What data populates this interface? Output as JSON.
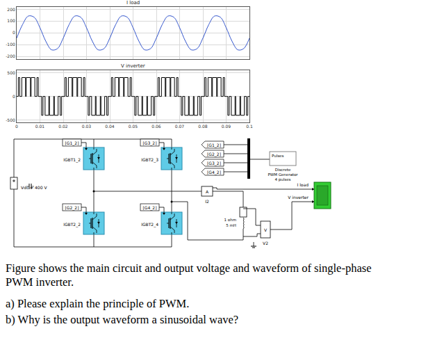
{
  "chart_data": [
    {
      "type": "line",
      "title": "I load",
      "color": "#3355cc",
      "x": [
        0,
        0.0025,
        0.005,
        0.0075,
        0.01,
        0.0125,
        0.015,
        0.0175,
        0.02,
        0.0225,
        0.025,
        0.0275,
        0.03,
        0.0325,
        0.035,
        0.0375,
        0.04,
        0.0425,
        0.045,
        0.0475,
        0.05,
        0.0525,
        0.055,
        0.0575,
        0.06,
        0.0625,
        0.065,
        0.0675,
        0.07,
        0.0725,
        0.075,
        0.0775,
        0.08,
        0.0825,
        0.085,
        0.0875,
        0.09,
        0.0925,
        0.095,
        0.0975,
        0.1
      ],
      "values": [
        -44,
        70,
        143,
        133,
        44,
        -70,
        -143,
        -133,
        -44,
        70,
        143,
        133,
        44,
        -70,
        -143,
        -133,
        -44,
        70,
        143,
        133,
        44,
        -70,
        -143,
        -133,
        -44,
        70,
        143,
        133,
        44,
        -70,
        -143,
        -133,
        -44,
        70,
        143,
        133,
        44,
        -70,
        -143,
        -133,
        -44
      ],
      "xlim": [
        0,
        0.1
      ],
      "ylim": [
        -220,
        220
      ],
      "xticks": [
        0,
        0.01,
        0.02,
        0.03,
        0.04,
        0.05,
        0.06,
        0.07,
        0.08,
        0.09,
        0.1
      ],
      "yticks": [
        -200,
        -100,
        0,
        100,
        200
      ],
      "grid": true,
      "tick_labels": "y"
    },
    {
      "type": "line",
      "title": "V inverter",
      "color": "#000000",
      "line_style": "step",
      "x": [
        0,
        0.0007,
        0.0013,
        0.0022,
        0.0038,
        0.0041,
        0.0059,
        0.0062,
        0.0078,
        0.0087,
        0.0093,
        0.01,
        0.0107,
        0.0113,
        0.0122,
        0.0138,
        0.0141,
        0.0159,
        0.0162,
        0.0178,
        0.0187,
        0.0193,
        0.02,
        0.0207,
        0.0213,
        0.0222,
        0.0238,
        0.0241,
        0.0259,
        0.0262,
        0.0278,
        0.0287,
        0.0293,
        0.03,
        0.0307,
        0.0313,
        0.0322,
        0.0338,
        0.0341,
        0.0359,
        0.0362,
        0.0378,
        0.0387,
        0.0393,
        0.04,
        0.0407,
        0.0413,
        0.0422,
        0.0438,
        0.0441,
        0.0459,
        0.0462,
        0.0478,
        0.0487,
        0.0493,
        0.05,
        0.0507,
        0.0513,
        0.0522,
        0.0538,
        0.0541,
        0.0559,
        0.0562,
        0.0578,
        0.0587,
        0.0593,
        0.06,
        0.0607,
        0.0613,
        0.0622,
        0.0638,
        0.0641,
        0.0659,
        0.0662,
        0.0678,
        0.0687,
        0.0693,
        0.07,
        0.0707,
        0.0713,
        0.0722,
        0.0738,
        0.0741,
        0.0759,
        0.0762,
        0.0778,
        0.0787,
        0.0793,
        0.08,
        0.0807,
        0.0813,
        0.0822,
        0.0838,
        0.0841,
        0.0859,
        0.0862,
        0.0878,
        0.0887,
        0.0893,
        0.09,
        0.0907,
        0.0913,
        0.0922,
        0.0938,
        0.0941,
        0.0959,
        0.0962,
        0.0978,
        0.0987,
        0.0993,
        0.1
      ],
      "values": [
        0,
        400,
        0,
        400,
        0,
        400,
        0,
        400,
        0,
        400,
        0,
        0,
        -400,
        0,
        -400,
        0,
        -400,
        0,
        -400,
        0,
        -400,
        0,
        0,
        400,
        0,
        400,
        0,
        400,
        0,
        400,
        0,
        400,
        0,
        0,
        -400,
        0,
        -400,
        0,
        -400,
        0,
        -400,
        0,
        -400,
        0,
        0,
        400,
        0,
        400,
        0,
        400,
        0,
        400,
        0,
        400,
        0,
        0,
        -400,
        0,
        -400,
        0,
        -400,
        0,
        -400,
        0,
        -400,
        0,
        0,
        400,
        0,
        400,
        0,
        400,
        0,
        400,
        0,
        400,
        0,
        0,
        -400,
        0,
        -400,
        0,
        -400,
        0,
        -400,
        0,
        -400,
        0,
        0,
        400,
        0,
        400,
        0,
        400,
        0,
        400,
        0,
        400,
        0,
        0,
        -400,
        0,
        -400,
        0,
        -400,
        0,
        -400,
        0,
        -400,
        0,
        0
      ],
      "xlim": [
        0,
        0.1
      ],
      "ylim": [
        -550,
        550
      ],
      "xticks": [
        0,
        0.01,
        0.02,
        0.03,
        0.04,
        0.05,
        0.06,
        0.07,
        0.08,
        0.09,
        0.1
      ],
      "yticks": [
        -500,
        0,
        500
      ],
      "grid": true
    }
  ],
  "diagram": {
    "igbts": [
      "IGBT1_2",
      "IGBT2_3",
      "IGBT2_2",
      "IGBT2_4"
    ],
    "gate_tags": [
      "[G1_2]",
      "[G3_2]",
      "[G2_2]",
      "[G4_2]"
    ],
    "source": "Vdc = 400 V",
    "pwm_outputs": [
      "[G1_2]",
      "[G2_2]",
      "[G3_2]",
      "[G4_2]"
    ],
    "pwm_generator": {
      "port": "Pulses",
      "label": [
        "Discrete",
        "PWM Generator",
        "4 pulses"
      ]
    },
    "current_measurement": "I2",
    "load": [
      "1 ohm",
      "5 mH"
    ],
    "voltage_measurement": "V2",
    "scope_inputs": [
      "I load",
      "V inverter"
    ]
  },
  "question": {
    "intro": [
      "Figure shows the main circuit and output voltage and waveform of single-phase",
      "PWM inverter."
    ],
    "items": [
      "a) Please explain the principle of PWM.",
      "b) Why is the output waveform a sinusoidal wave?"
    ]
  }
}
